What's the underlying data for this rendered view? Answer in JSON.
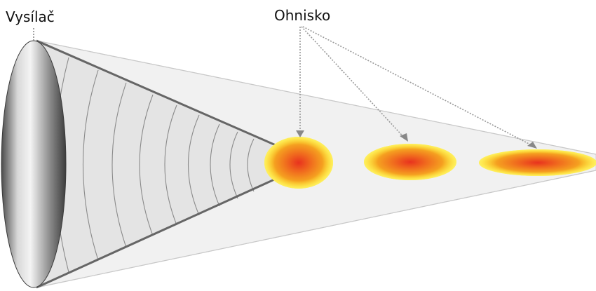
{
  "labels": {
    "transmitter": "Vysílač",
    "focus": "Ohnisko"
  },
  "colors": {
    "beam_outer": "#f2f2f2",
    "beam_inner": "#e3e3e3",
    "beam_edge": "#666666",
    "wavefront": "#8a8a8a",
    "leader": "#999999",
    "focus_core": "#e8321e",
    "focus_mid": "#f5a020",
    "focus_edge": "#ffe800"
  },
  "focal_spots": [
    {
      "name": "focal-spot-1"
    },
    {
      "name": "focal-spot-2"
    },
    {
      "name": "focal-spot-3"
    }
  ]
}
